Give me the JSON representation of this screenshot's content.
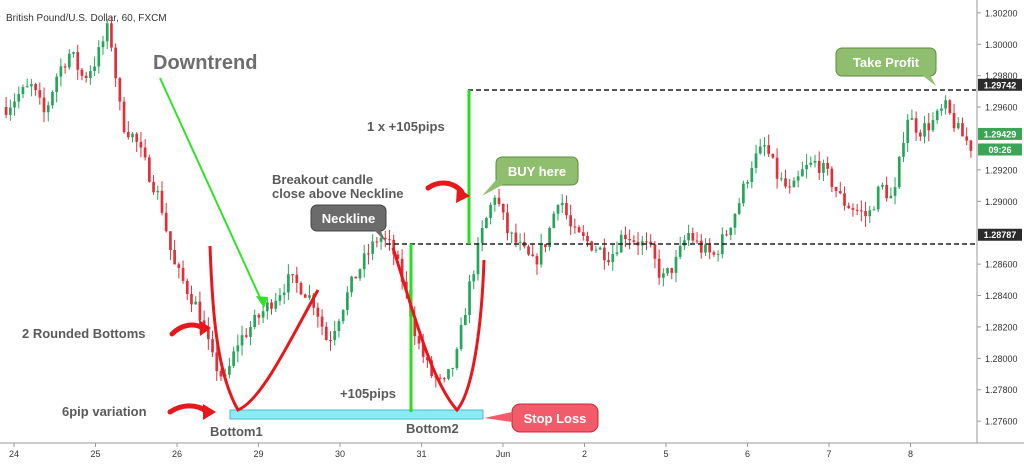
{
  "header": {
    "symbol_title": "British Pound/U.S. Dollar, 60, FXCM"
  },
  "colors": {
    "bull": "#26a65b",
    "bear": "#e0303a",
    "curve": "#e8171c",
    "green_line": "#22e01e",
    "label_bg": "#8fbf6e",
    "neckline_bg": "#6b6b6b",
    "stoploss_bg": "#f25c6a",
    "zone": "#7ee8f5",
    "axis_text": "#333333"
  },
  "chart_data": {
    "type": "candlestick",
    "title": "British Pound/U.S. Dollar, 60, FXCM",
    "xlabel": "",
    "ylabel": "",
    "ylim": [
      1.2748,
      1.3025
    ],
    "y_ticks": [
      "1.30200",
      "1.30000",
      "1.29800",
      "1.29600",
      "1.29200",
      "1.29000",
      "1.28600",
      "1.28400",
      "1.28200",
      "1.28000",
      "1.27800",
      "1.27600"
    ],
    "x_ticks": [
      "24",
      "25",
      "26",
      "29",
      "30",
      "31",
      "Jun",
      "2",
      "5",
      "6",
      "7",
      "8"
    ],
    "price_markers": [
      {
        "label": "1.29742",
        "value": 1.29742,
        "style": "dark"
      },
      {
        "label": "1.29429",
        "value": 1.29429,
        "style": "green"
      },
      {
        "label": "09:26",
        "value": 1.2933,
        "style": "green"
      },
      {
        "label": "1.28787",
        "value": 1.28787,
        "style": "dark"
      }
    ],
    "levels": [
      {
        "name": "Take Profit level",
        "value": 1.29742
      },
      {
        "name": "Neckline",
        "value": 1.28787
      }
    ],
    "path_points": [
      1.296,
      1.2968,
      1.2973,
      1.2955,
      1.2982,
      1.2995,
      1.2978,
      1.299,
      1.3012,
      1.295,
      1.294,
      1.292,
      1.29,
      1.286,
      1.2845,
      1.283,
      1.28,
      1.2785,
      1.281,
      1.282,
      1.283,
      1.284,
      1.285,
      1.2845,
      1.2835,
      1.281,
      1.283,
      1.285,
      1.2865,
      1.2878,
      1.287,
      1.2845,
      1.281,
      1.279,
      1.2782,
      1.28,
      1.2845,
      1.288,
      1.2905,
      1.288,
      1.287,
      1.286,
      1.2875,
      1.2905,
      1.288,
      1.2875,
      1.287,
      1.2865,
      1.288,
      1.2875,
      1.287,
      1.285,
      1.286,
      1.288,
      1.287,
      1.2865,
      1.288,
      1.29,
      1.2925,
      1.2935,
      1.2915,
      1.2905,
      1.292,
      1.2925,
      1.2915,
      1.29,
      1.2895,
      1.289,
      1.291,
      1.29,
      1.2955,
      1.2945,
      1.295,
      1.296,
      1.2945,
      1.2935
    ],
    "candle_count": 230
  },
  "annotations": {
    "downtrend": "Downtrend",
    "rounded_bottoms": "2 Rounded Bottoms",
    "pip_variation": "6pip variation",
    "bottom1": "Bottom1",
    "bottom2": "Bottom2",
    "pips_105": "+105pips",
    "target_move": "1 x +105pips",
    "breakout_line1": "Breakout candle",
    "breakout_line2": "close above Neckline",
    "neckline": "Neckline",
    "buy_here": "BUY here",
    "take_profit": "Take Profit",
    "stop_loss": "Stop Loss"
  }
}
